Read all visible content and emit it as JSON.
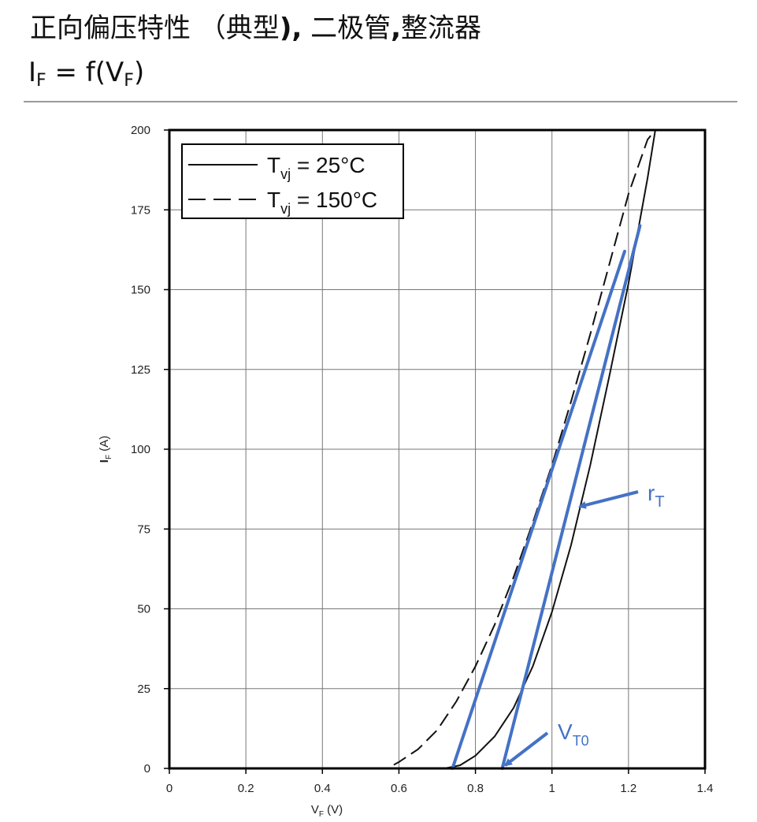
{
  "header": {
    "title_main": "正向偏压特性 （典型",
    "title_paren": "),",
    "title_rest": " 二极管",
    "title_comma": ",",
    "title_tail": "整流器",
    "subtitle_base": "I",
    "subtitle_sub": "F",
    "subtitle_mid": " = f(V",
    "subtitle_sub2": "F",
    "subtitle_end": ")"
  },
  "chart_data": {
    "type": "line",
    "xlabel": "V",
    "xlabel_sub": "F",
    "xlabel_unit": " (V)",
    "ylabel": "I",
    "ylabel_sub": "F",
    "ylabel_unit": " (A)",
    "xlim": [
      0,
      1.4
    ],
    "ylim": [
      0,
      200
    ],
    "x_ticks": [
      0,
      0.2,
      0.4,
      0.6,
      0.8,
      1,
      1.2,
      1.4
    ],
    "x_tick_labels": [
      "0",
      "0.2",
      "0.4",
      "0.6",
      "0.8",
      "1",
      "1.2",
      "1.4"
    ],
    "y_ticks": [
      0,
      25,
      50,
      75,
      100,
      125,
      150,
      175,
      200
    ],
    "y_tick_labels": [
      "0",
      "25",
      "50",
      "75",
      "100",
      "125",
      "150",
      "175",
      "200"
    ],
    "grid": true,
    "legend_position": "top-left",
    "series": [
      {
        "name": "T",
        "name_sub": "vj",
        "name_rest": " = 25°C",
        "style": "solid",
        "color": "#111111",
        "x": [
          0,
          0.72,
          0.76,
          0.8,
          0.85,
          0.9,
          0.95,
          1.0,
          1.05,
          1.1,
          1.15,
          1.2,
          1.25,
          1.27
        ],
        "y": [
          0,
          0,
          1,
          4,
          10,
          19,
          32,
          49,
          70,
          95,
          123,
          152,
          185,
          200
        ]
      },
      {
        "name": "T",
        "name_sub": "vj",
        "name_rest": " = 150°C",
        "style": "dashed",
        "color": "#111111",
        "x": [
          0,
          0.57,
          0.6,
          0.65,
          0.7,
          0.75,
          0.8,
          0.85,
          0.9,
          0.95,
          1.0,
          1.05,
          1.1,
          1.15,
          1.2,
          1.25,
          1.27
        ],
        "y": [
          0,
          0,
          2,
          6,
          12,
          21,
          32,
          45,
          60,
          77,
          95,
          115,
          136,
          158,
          180,
          197,
          200
        ]
      }
    ],
    "tangent_lines": [
      {
        "x": [
          0.74,
          1.19
        ],
        "y": [
          0,
          162
        ],
        "color": "#4472c4"
      },
      {
        "x": [
          0.87,
          1.23
        ],
        "y": [
          0,
          170
        ],
        "color": "#4472c4"
      }
    ],
    "annotations": [
      {
        "text": "r",
        "sub": "T",
        "color": "#4472c4",
        "arrow_to": [
          1.06,
          83
        ]
      },
      {
        "text": "V",
        "sub": "T0",
        "color": "#4472c4",
        "arrow_to": [
          0.87,
          0
        ]
      }
    ]
  }
}
